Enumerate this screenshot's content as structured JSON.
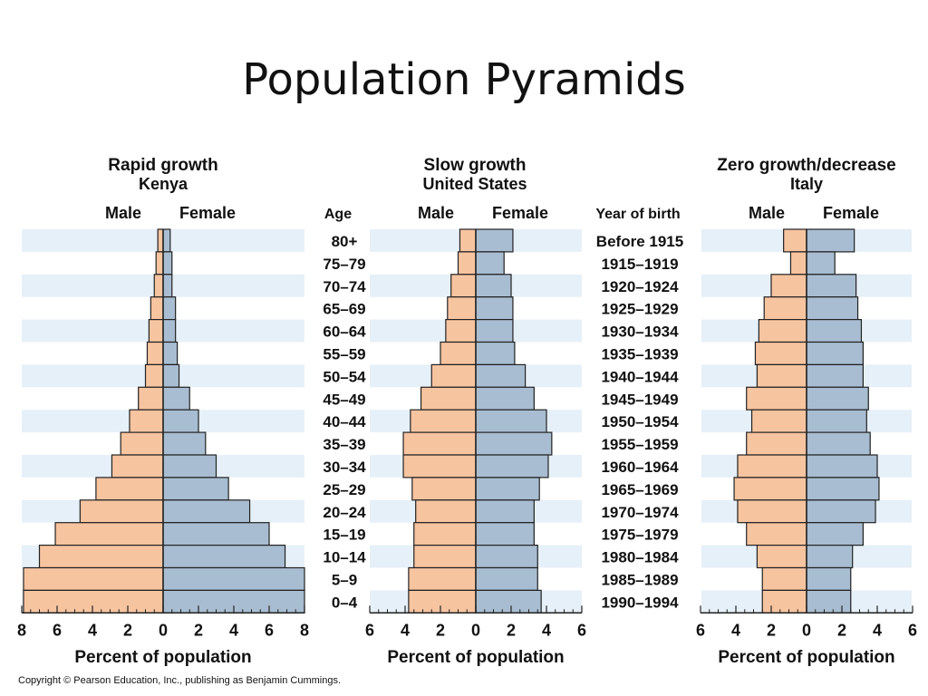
{
  "slide": {
    "title": "Population Pyramids",
    "copyright": "Copyright © Pearson Education, Inc., publishing as Benjamin Cummings."
  },
  "colors": {
    "male": "#f7c4a0",
    "female": "#a8bdd1",
    "stripe": "#e6f0f8",
    "outline": "#222222"
  },
  "chart_data": {
    "type": "bar",
    "orientation": "horizontal-pyramid",
    "age_header": "Age",
    "year_header": "Year of birth",
    "age_groups": [
      "80+",
      "75–79",
      "70–74",
      "65–69",
      "60–64",
      "55–59",
      "50–54",
      "45–49",
      "40–44",
      "35–39",
      "30–34",
      "25–29",
      "20–24",
      "15–19",
      "10–14",
      "5–9",
      "0–4"
    ],
    "birth_years": [
      "Before 1915",
      "1915–1919",
      "1920–1924",
      "1925–1929",
      "1930–1934",
      "1935–1939",
      "1940–1944",
      "1945–1949",
      "1950–1954",
      "1955–1959",
      "1960–1964",
      "1965–1969",
      "1970–1974",
      "1975–1979",
      "1980–1984",
      "1985–1989",
      "1990–1994"
    ],
    "pyramids": [
      {
        "title": "Rapid growth",
        "country": "Kenya",
        "male_label": "Male",
        "female_label": "Female",
        "xlabel": "Percent of population",
        "xmax": 8,
        "ticks": [
          "8",
          "6",
          "4",
          "2",
          "0",
          "2",
          "4",
          "6",
          "8"
        ],
        "male": [
          0.3,
          0.4,
          0.5,
          0.7,
          0.8,
          0.9,
          1.0,
          1.4,
          1.9,
          2.4,
          2.9,
          3.8,
          4.7,
          6.1,
          7.0,
          7.9,
          7.9
        ],
        "female": [
          0.4,
          0.5,
          0.5,
          0.7,
          0.7,
          0.8,
          0.9,
          1.5,
          2.0,
          2.4,
          3.0,
          3.7,
          4.9,
          6.0,
          6.9,
          8.0,
          8.0
        ]
      },
      {
        "title": "Slow growth",
        "country": "United States",
        "male_label": "Male",
        "female_label": "Female",
        "xlabel": "Percent of population",
        "xmax": 6,
        "ticks": [
          "6",
          "4",
          "2",
          "0",
          "2",
          "4",
          "6"
        ],
        "male": [
          0.9,
          1.0,
          1.4,
          1.6,
          1.7,
          2.0,
          2.5,
          3.1,
          3.7,
          4.1,
          4.1,
          3.6,
          3.4,
          3.5,
          3.5,
          3.8,
          3.8
        ],
        "female": [
          2.1,
          1.6,
          2.0,
          2.1,
          2.1,
          2.2,
          2.8,
          3.3,
          4.0,
          4.3,
          4.1,
          3.6,
          3.3,
          3.3,
          3.5,
          3.5,
          3.7
        ]
      },
      {
        "title": "Zero growth/decrease",
        "country": "Italy",
        "male_label": "Male",
        "female_label": "Female",
        "xlabel": "Percent of population",
        "xmax": 6,
        "ticks": [
          "6",
          "4",
          "2",
          "0",
          "2",
          "4",
          "6"
        ],
        "male": [
          1.3,
          0.9,
          2.0,
          2.4,
          2.7,
          2.9,
          2.8,
          3.4,
          3.1,
          3.4,
          3.9,
          4.1,
          3.9,
          3.4,
          2.8,
          2.5,
          2.5
        ],
        "female": [
          2.7,
          1.6,
          2.8,
          2.9,
          3.1,
          3.2,
          3.2,
          3.5,
          3.4,
          3.6,
          4.0,
          4.1,
          3.9,
          3.2,
          2.6,
          2.5,
          2.5
        ]
      }
    ]
  }
}
